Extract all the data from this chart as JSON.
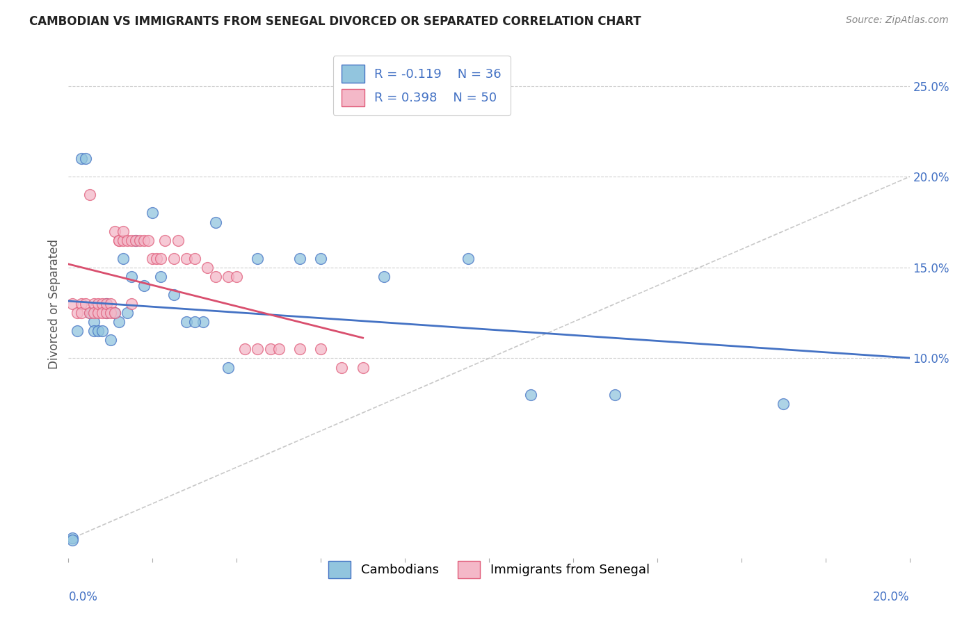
{
  "title": "CAMBODIAN VS IMMIGRANTS FROM SENEGAL DIVORCED OR SEPARATED CORRELATION CHART",
  "source": "Source: ZipAtlas.com",
  "ylabel": "Divorced or Separated",
  "xlim": [
    0.0,
    0.2
  ],
  "ylim": [
    -0.01,
    0.27
  ],
  "ylabel_right_ticks": [
    "10.0%",
    "15.0%",
    "20.0%",
    "25.0%"
  ],
  "ylabel_right_vals": [
    0.1,
    0.15,
    0.2,
    0.25
  ],
  "xlabel_ticks": [
    "0.0%",
    "20.0%"
  ],
  "xlabel_vals": [
    0.0,
    0.2
  ],
  "legend_r_cambodian": "R = -0.119",
  "legend_n_cambodian": "N = 36",
  "legend_r_senegal": "R = 0.398",
  "legend_n_senegal": "N = 50",
  "legend_cambodians": "Cambodians",
  "legend_senegal": "Immigrants from Senegal",
  "color_cambodian_fill": "#92c5de",
  "color_cambodian_edge": "#4472c4",
  "color_senegal_fill": "#f4b8c8",
  "color_senegal_edge": "#e05c7a",
  "color_trend_cambodian": "#4472c4",
  "color_trend_senegal": "#d94f6e",
  "color_diagonal": "#c8c8c8",
  "color_grid": "#d0d0d0",
  "background": "#ffffff",
  "cambodian_x": [
    0.001,
    0.002,
    0.003,
    0.004,
    0.005,
    0.006,
    0.006,
    0.007,
    0.008,
    0.009,
    0.009,
    0.01,
    0.011,
    0.012,
    0.013,
    0.014,
    0.015,
    0.016,
    0.018,
    0.02,
    0.022,
    0.025,
    0.028,
    0.032,
    0.038,
    0.045,
    0.055,
    0.075,
    0.095,
    0.11,
    0.03,
    0.035,
    0.06,
    0.13,
    0.17,
    0.001
  ],
  "cambodian_y": [
    0.001,
    0.115,
    0.21,
    0.21,
    0.125,
    0.12,
    0.115,
    0.115,
    0.115,
    0.125,
    0.13,
    0.11,
    0.125,
    0.12,
    0.155,
    0.125,
    0.145,
    0.165,
    0.14,
    0.18,
    0.145,
    0.135,
    0.12,
    0.12,
    0.095,
    0.155,
    0.155,
    0.145,
    0.155,
    0.08,
    0.12,
    0.175,
    0.155,
    0.08,
    0.075,
    0.0
  ],
  "senegal_x": [
    0.001,
    0.002,
    0.003,
    0.003,
    0.004,
    0.005,
    0.005,
    0.006,
    0.006,
    0.007,
    0.007,
    0.008,
    0.008,
    0.009,
    0.009,
    0.01,
    0.01,
    0.011,
    0.011,
    0.012,
    0.012,
    0.013,
    0.013,
    0.014,
    0.015,
    0.015,
    0.016,
    0.017,
    0.018,
    0.019,
    0.02,
    0.021,
    0.022,
    0.023,
    0.025,
    0.026,
    0.028,
    0.03,
    0.033,
    0.035,
    0.038,
    0.04,
    0.042,
    0.045,
    0.048,
    0.05,
    0.055,
    0.06,
    0.065,
    0.07
  ],
  "senegal_y": [
    0.13,
    0.125,
    0.13,
    0.125,
    0.13,
    0.125,
    0.19,
    0.13,
    0.125,
    0.125,
    0.13,
    0.13,
    0.125,
    0.125,
    0.13,
    0.13,
    0.125,
    0.125,
    0.17,
    0.165,
    0.165,
    0.165,
    0.17,
    0.165,
    0.13,
    0.165,
    0.165,
    0.165,
    0.165,
    0.165,
    0.155,
    0.155,
    0.155,
    0.165,
    0.155,
    0.165,
    0.155,
    0.155,
    0.15,
    0.145,
    0.145,
    0.145,
    0.105,
    0.105,
    0.105,
    0.105,
    0.105,
    0.105,
    0.095,
    0.095
  ]
}
